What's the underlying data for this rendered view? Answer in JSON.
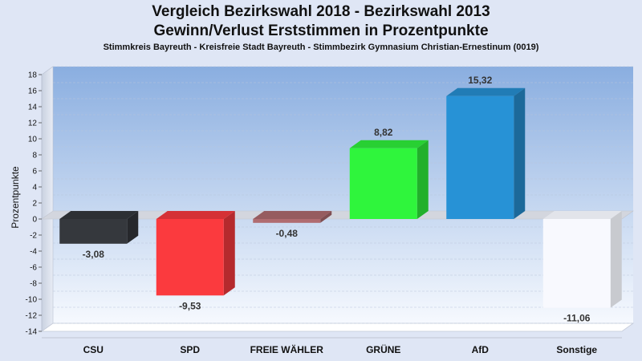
{
  "title_line1": "Vergleich Bezirkswahl 2018 - Bezirkswahl 2013",
  "title_line2": "Gewinn/Verlust Erststimmen in Prozentpunkte",
  "subtitle": "Stimmkreis Bayreuth - Kreisfreie Stadt Bayreuth - Stimmbezirk Gymnasium Christian-Ernestinum (0019)",
  "chart_data": {
    "type": "bar",
    "title": "Vergleich Bezirkswahl 2018 - Bezirkswahl 2013 / Gewinn/Verlust Erststimmen in Prozentpunkte",
    "xlabel": "",
    "ylabel": "Prozentpunkte",
    "ylim": [
      -14,
      18
    ],
    "yticks": [
      -14,
      -12,
      -10,
      -8,
      -6,
      -4,
      -2,
      0,
      2,
      4,
      6,
      8,
      10,
      12,
      14,
      16,
      18
    ],
    "categories": [
      "CSU",
      "SPD",
      "FREIE WÄHLER",
      "GRÜNE",
      "AfD",
      "Sonstige"
    ],
    "values": [
      -3.08,
      -9.53,
      -0.48,
      8.82,
      15.32,
      -11.06
    ],
    "labels": [
      "-3,08",
      "-9,53",
      "-0,48",
      "8,82",
      "15,32",
      "-11,06"
    ],
    "colors": [
      "#35383d",
      "#fb3a3e",
      "#b06c70",
      "#2ff53c",
      "#2792d6",
      "#f8f9fe"
    ],
    "grid": true,
    "legend": "none"
  }
}
